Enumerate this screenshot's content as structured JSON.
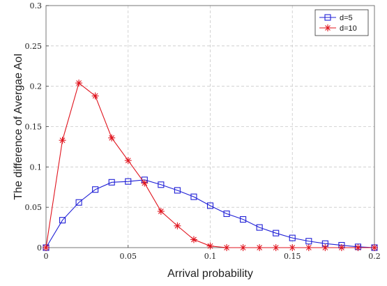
{
  "chart_data": {
    "type": "line",
    "title": "",
    "xlabel": "Arrival probability",
    "ylabel": "The difference of Avergae AoI",
    "xlim": [
      0,
      0.2
    ],
    "ylim": [
      0,
      0.3
    ],
    "xticks": [
      0,
      0.05,
      0.1,
      0.15,
      0.2
    ],
    "xtick_labels": [
      "0",
      "0.05",
      "0.1",
      "0.15",
      "0.2"
    ],
    "yticks": [
      0,
      0.05,
      0.1,
      0.15,
      0.2,
      0.25,
      0.3
    ],
    "ytick_labels": [
      "0",
      "0.05",
      "0.1",
      "0.15",
      "0.2",
      "0.25",
      "0.3"
    ],
    "grid": true,
    "legend_position": "top-right",
    "x": [
      0,
      0.01,
      0.02,
      0.03,
      0.04,
      0.05,
      0.06,
      0.07,
      0.08,
      0.09,
      0.1,
      0.11,
      0.12,
      0.13,
      0.14,
      0.15,
      0.16,
      0.17,
      0.18,
      0.19,
      0.2
    ],
    "series": [
      {
        "name": "d=5",
        "color": "#1f1fd6",
        "marker": "square",
        "values": [
          0,
          0.034,
          0.056,
          0.072,
          0.081,
          0.082,
          0.084,
          0.078,
          0.071,
          0.063,
          0.052,
          0.042,
          0.035,
          0.025,
          0.018,
          0.012,
          0.008,
          0.005,
          0.003,
          0.001,
          0.0
        ]
      },
      {
        "name": "d=10",
        "color": "#e0141e",
        "marker": "asterisk",
        "values": [
          0,
          0.133,
          0.204,
          0.188,
          0.136,
          0.108,
          0.08,
          0.045,
          0.027,
          0.01,
          0.002,
          0,
          0,
          0,
          0,
          0,
          0,
          0,
          0,
          0,
          0
        ]
      }
    ]
  }
}
